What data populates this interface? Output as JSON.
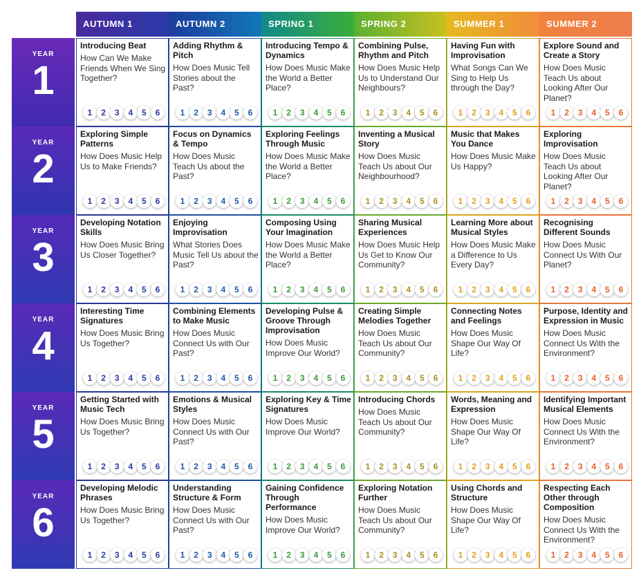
{
  "terms": [
    {
      "label": "AUTUMN 1",
      "color": "#283593",
      "bg": "linear-gradient(90deg,#4a2a9c,#2a3aa8)"
    },
    {
      "label": "AUTUMN 2",
      "color": "#1e4fa0",
      "bg": "linear-gradient(90deg,#1e3c9c,#1177b8)"
    },
    {
      "label": "SPRING 1",
      "color": "#1a8a6a",
      "bg": "linear-gradient(90deg,#128a8a,#3aad3a)"
    },
    {
      "label": "SPRING 2",
      "color": "#6aa828",
      "bg": "linear-gradient(90deg,#5ab030,#c9c020)"
    },
    {
      "label": "SUMMER 1",
      "color": "#d9a520",
      "bg": "linear-gradient(90deg,#e6b820,#f08d3a)"
    },
    {
      "label": "SUMMER 2",
      "color": "#e8763a",
      "bg": "linear-gradient(90deg,#f0823c,#ee7e4e)"
    }
  ],
  "num_colors": [
    "#2a3aa0",
    "#1e5aa8",
    "#3a9a3a",
    "#a89020",
    "#e0a020",
    "#e8602a"
  ],
  "year_label": "YEAR",
  "numbers": [
    "1",
    "2",
    "3",
    "4",
    "5",
    "6"
  ],
  "years": [
    {
      "year": "1",
      "cells": [
        {
          "title": "Introducing Beat",
          "question": "How Can We Make Friends When We Sing Together?"
        },
        {
          "title": "Adding Rhythm & Pitch",
          "question": "How Does Music Tell Stories about the Past?"
        },
        {
          "title": "Introducing Tempo & Dynamics",
          "question": "How Does Music Make the World a Better Place?"
        },
        {
          "title": "Combining Pulse, Rhythm and Pitch",
          "question": "How Does Music Help Us to Understand Our Neighbours?"
        },
        {
          "title": "Having Fun with Improvisation",
          "question": "What Songs Can We Sing to Help Us through the Day?"
        },
        {
          "title": "Explore Sound and Create a Story",
          "question": "How Does Music Teach Us about Looking After Our Planet?"
        }
      ]
    },
    {
      "year": "2",
      "cells": [
        {
          "title": "Exploring Simple Patterns",
          "question": "How Does Music Help Us to Make Friends?"
        },
        {
          "title": "Focus on Dynamics & Tempo",
          "question": "How Does Music Teach Us about the Past?"
        },
        {
          "title": "Exploring Feelings Through Music",
          "question": "How Does Music Make the World a Better Place?"
        },
        {
          "title": "Inventing a Musical Story",
          "question": "How Does Music Teach Us about Our Neighbourhood?"
        },
        {
          "title": "Music that Makes You Dance",
          "question": "How Does Music Make Us Happy?"
        },
        {
          "title": "Exploring Improvisation",
          "question": "How Does Music Teach Us about Looking After Our Planet?"
        }
      ]
    },
    {
      "year": "3",
      "cells": [
        {
          "title": "Developing Notation Skills",
          "question": "How Does Music Bring Us Closer Together?"
        },
        {
          "title": "Enjoying Improvisation",
          "question": "What Stories Does Music Tell Us about the Past?"
        },
        {
          "title": "Composing Using Your Imagination",
          "question": "How Does Music Make the World a Better Place?"
        },
        {
          "title": "Sharing Musical Experiences",
          "question": "How Does Music Help Us Get to Know Our Community?"
        },
        {
          "title": "Learning More about Musical Styles",
          "question": "How Does Music Make a Difference to Us Every Day?"
        },
        {
          "title": "Recognising Different Sounds",
          "question": "How Does Music Connect Us With Our Planet?"
        }
      ]
    },
    {
      "year": "4",
      "cells": [
        {
          "title": "Interesting Time Signatures",
          "question": "How Does Music Bring Us Together?"
        },
        {
          "title": "Combining Elements to Make Music",
          "question": "How Does Music Connect Us with Our Past?"
        },
        {
          "title": "Developing Pulse & Groove Through Improvisation",
          "question": "How Does Music Improve Our World?"
        },
        {
          "title": "Creating Simple Melodies Together",
          "question": "How Does Music Teach Us about Our Community?"
        },
        {
          "title": "Connecting Notes and Feelings",
          "question": "How Does Music Shape Our Way Of Life?"
        },
        {
          "title": "Purpose, Identity and Expression in Music",
          "question": "How Does Music Connect Us With the Environment?"
        }
      ]
    },
    {
      "year": "5",
      "cells": [
        {
          "title": "Getting Started with Music Tech",
          "question": "How Does Music Bring Us Together?"
        },
        {
          "title": "Emotions & Musical Styles",
          "question": "How Does Music Connect Us with Our Past?"
        },
        {
          "title": "Exploring Key & Time Signatures",
          "question": "How Does Music Improve Our World?"
        },
        {
          "title": "Introducing Chords",
          "question": "How Does Music Teach Us about Our Community?"
        },
        {
          "title": "Words, Meaning and Expression",
          "question": "How Does Music Shape Our Way Of Life?"
        },
        {
          "title": "Identifying Important Musical Elements",
          "question": "How Does Music Connect Us With the Environment?"
        }
      ]
    },
    {
      "year": "6",
      "cells": [
        {
          "title": "Developing Melodic Phrases",
          "question": "How Does Music Bring Us Together?"
        },
        {
          "title": "Understanding Structure & Form",
          "question": "How Does Music Connect Us with Our Past?"
        },
        {
          "title": "Gaining Confidence Through Performance",
          "question": "How Does Music Improve Our World?"
        },
        {
          "title": "Exploring Notation Further",
          "question": "How Does Music Teach Us about Our Community?"
        },
        {
          "title": "Using Chords and Structure",
          "question": "How Does Music Shape Our Way Of Life?"
        },
        {
          "title": "Respecting Each Other through Composition",
          "question": "How Does Music Connect Us With the Environment?"
        }
      ]
    }
  ]
}
